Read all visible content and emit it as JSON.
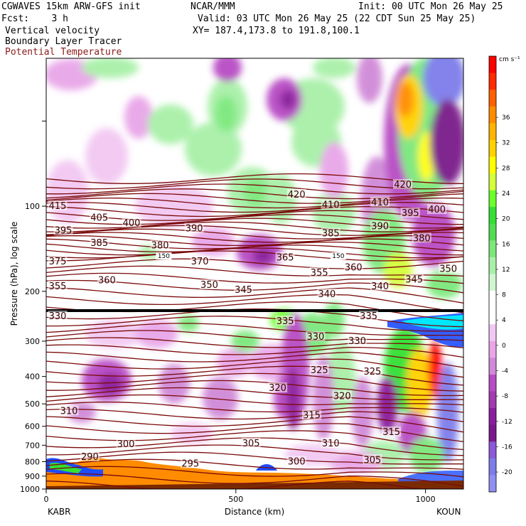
{
  "header": {
    "line1_left": "CGWAVES 15km ARW-GFS init",
    "line1_mid": "NCAR/MMM",
    "line1_right": "Init: 00 UTC Mon 26 May 25",
    "line2_left": "Fcst:    3 h",
    "line2_right": "Valid: 03 UTC Mon 26 May 25 (22 CDT Sun 25 May 25)",
    "line3_left": "Vertical velocity",
    "line3_right": "XY= 187.4,173.8 to 191.8,100.1",
    "line4_left": "Boundary Layer Tracer",
    "line5_left": "Potential Temperature"
  },
  "chart_data": {
    "type": "heatmap",
    "ylabel": "Pressure (hPa), log scale",
    "xlabel": "Distance (km)",
    "x_ticks": [
      0,
      500,
      1000
    ],
    "xlim": [
      0,
      1100
    ],
    "y_ticks": [
      100,
      200,
      300,
      400,
      500,
      600,
      700,
      800,
      900,
      1000
    ],
    "ylim": [
      1000,
      30
    ],
    "y_scale": "log",
    "start_label": "KABR",
    "end_label": "KOUN",
    "colorbar": {
      "unit": "cm s⁻¹",
      "tick_labels": [
        "36",
        "32",
        "28",
        "24",
        "20",
        "16",
        "12",
        "8",
        "4",
        "0",
        "-4",
        "-8",
        "-12",
        "-16",
        "-20"
      ],
      "colors": [
        "#ff0000",
        "#ff2a00",
        "#ff6000",
        "#ff8c00",
        "#ffb400",
        "#ffd200",
        "#ffff00",
        "#d4ff3a",
        "#6cff2a",
        "#33e033",
        "#50dd50",
        "#7be87b",
        "#a8f0a8",
        "#d0f7d0",
        "#ffffff",
        "#ffffff",
        "#f2c8f2",
        "#e8a6e8",
        "#d08ad8",
        "#b84cc4",
        "#a23ab0",
        "#8a1e9c",
        "#7a1a8a",
        "#8a5ad8",
        "#7d7dea",
        "#9090f2"
      ]
    },
    "theta_labels": [
      {
        "text": "415",
        "x": 30,
        "p": 100
      },
      {
        "text": "405",
        "x": 140,
        "p": 110
      },
      {
        "text": "400",
        "x": 225,
        "p": 115
      },
      {
        "text": "395",
        "x": 45,
        "p": 122
      },
      {
        "text": "390",
        "x": 390,
        "p": 120
      },
      {
        "text": "385",
        "x": 140,
        "p": 135
      },
      {
        "text": "380",
        "x": 300,
        "p": 138
      },
      {
        "text": "385",
        "x": 750,
        "p": 125
      },
      {
        "text": "390",
        "x": 880,
        "p": 118
      },
      {
        "text": "395",
        "x": 960,
        "p": 106
      },
      {
        "text": "400",
        "x": 1030,
        "p": 103
      },
      {
        "text": "410",
        "x": 750,
        "p": 99
      },
      {
        "text": "410",
        "x": 880,
        "p": 97
      },
      {
        "text": "420",
        "x": 660,
        "p": 91
      },
      {
        "text": "420",
        "x": 940,
        "p": 84
      },
      {
        "text": "380",
        "x": 990,
        "p": 130
      },
      {
        "text": "375",
        "x": 30,
        "p": 157
      },
      {
        "text": "370",
        "x": 405,
        "p": 157
      },
      {
        "text": "365",
        "x": 630,
        "p": 152
      },
      {
        "text": "360",
        "x": 810,
        "p": 165
      },
      {
        "text": "355",
        "x": 720,
        "p": 172
      },
      {
        "text": "360",
        "x": 160,
        "p": 183
      },
      {
        "text": "355",
        "x": 30,
        "p": 192
      },
      {
        "text": "350",
        "x": 430,
        "p": 190
      },
      {
        "text": "345",
        "x": 520,
        "p": 198
      },
      {
        "text": "350",
        "x": 1060,
        "p": 167
      },
      {
        "text": "345",
        "x": 970,
        "p": 182
      },
      {
        "text": "340",
        "x": 740,
        "p": 205
      },
      {
        "text": "340",
        "x": 880,
        "p": 192
      },
      {
        "text": "335",
        "x": 630,
        "p": 255
      },
      {
        "text": "335",
        "x": 850,
        "p": 245
      },
      {
        "text": "330",
        "x": 30,
        "p": 245
      },
      {
        "text": "330",
        "x": 710,
        "p": 290
      },
      {
        "text": "330",
        "x": 820,
        "p": 300
      },
      {
        "text": "325",
        "x": 720,
        "p": 380
      },
      {
        "text": "325",
        "x": 860,
        "p": 385
      },
      {
        "text": "320",
        "x": 610,
        "p": 440
      },
      {
        "text": "320",
        "x": 780,
        "p": 470
      },
      {
        "text": "315",
        "x": 700,
        "p": 550
      },
      {
        "text": "315",
        "x": 910,
        "p": 630
      },
      {
        "text": "310",
        "x": 60,
        "p": 530
      },
      {
        "text": "310",
        "x": 750,
        "p": 690
      },
      {
        "text": "305",
        "x": 540,
        "p": 690
      },
      {
        "text": "305",
        "x": 860,
        "p": 790
      },
      {
        "text": "300",
        "x": 210,
        "p": 695
      },
      {
        "text": "300",
        "x": 660,
        "p": 800
      },
      {
        "text": "295",
        "x": 380,
        "p": 815
      },
      {
        "text": "290",
        "x": 115,
        "p": 770
      }
    ],
    "dark_labels": [
      {
        "text": "150",
        "x": 310,
        "p": 150
      },
      {
        "text": "150",
        "x": 770,
        "p": 150
      }
    ]
  }
}
